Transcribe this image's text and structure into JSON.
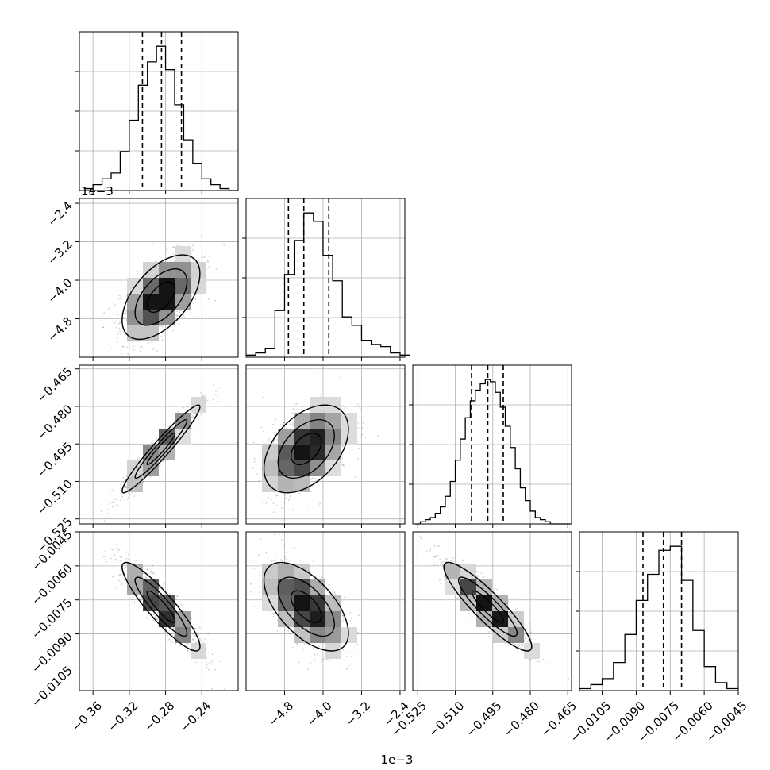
{
  "chart_data": {
    "type": "corner",
    "parameters": 4,
    "grid": true,
    "quantile_lines": "dashed",
    "marginal_histograms": [
      {
        "param": 0,
        "bin_edges": [
          -0.37,
          -0.36,
          -0.35,
          -0.34,
          -0.33,
          -0.32,
          -0.31,
          -0.3,
          -0.29,
          -0.28,
          -0.27,
          -0.26,
          -0.25,
          -0.24,
          -0.23,
          -0.22,
          -0.21,
          -0.2
        ],
        "counts": [
          1,
          3,
          6,
          9,
          20,
          36,
          54,
          66,
          74,
          62,
          44,
          26,
          14,
          6,
          3,
          1,
          0
        ],
        "quantiles": [
          -0.3055,
          -0.2845,
          -0.2625
        ]
      },
      {
        "param": 1,
        "bin_edges": [
          -5.6,
          -5.4,
          -5.2,
          -5.0,
          -4.8,
          -4.6,
          -4.4,
          -4.2,
          -4.0,
          -3.8,
          -3.6,
          -3.4,
          -3.2,
          -3.0,
          -2.8,
          -2.6,
          -2.4,
          -2.2
        ],
        "counts": [
          1,
          2,
          4,
          22,
          39,
          55,
          68,
          64,
          48,
          36,
          19,
          15,
          8,
          6,
          5,
          2,
          1
        ],
        "quantiles": [
          -4.72,
          -4.4,
          -3.88
        ]
      },
      {
        "param": 2,
        "bin_edges": [
          -0.526,
          -0.524,
          -0.522,
          -0.52,
          -0.518,
          -0.516,
          -0.514,
          -0.512,
          -0.51,
          -0.508,
          -0.506,
          -0.504,
          -0.502,
          -0.5,
          -0.498,
          -0.496,
          -0.494,
          -0.492,
          -0.49,
          -0.488,
          -0.486,
          -0.484,
          -0.482,
          -0.48,
          -0.478,
          -0.476,
          -0.474,
          -0.472,
          -0.47,
          -0.468,
          -0.466,
          -0.464
        ],
        "counts": [
          0,
          1,
          2,
          3,
          5,
          8,
          13,
          20,
          30,
          40,
          50,
          58,
          63,
          66,
          68,
          67,
          62,
          55,
          46,
          36,
          26,
          17,
          11,
          6,
          3,
          2,
          1,
          0,
          0,
          0,
          0
        ],
        "quantiles": [
          -0.5035,
          -0.497,
          -0.4908
        ]
      },
      {
        "param": 3,
        "bin_edges": [
          -0.0115,
          -0.011,
          -0.0105,
          -0.01,
          -0.0095,
          -0.009,
          -0.0085,
          -0.008,
          -0.0075,
          -0.007,
          -0.0065,
          -0.006,
          -0.0055,
          -0.005,
          -0.0045
        ],
        "counts": [
          1,
          3,
          6,
          14,
          28,
          45,
          58,
          70,
          72,
          55,
          30,
          12,
          4,
          1
        ],
        "quantiles": [
          -0.0087,
          -0.0078,
          -0.007
        ]
      }
    ],
    "pairs": [
      {
        "row": 1,
        "col": 0,
        "center": [
          -0.285,
          -4.35
        ],
        "sd": [
          0.022,
          0.45
        ],
        "corr": 0.55
      },
      {
        "row": 2,
        "col": 0,
        "center": [
          -0.285,
          -0.497
        ],
        "sd": [
          0.022,
          0.009
        ],
        "corr": 0.96
      },
      {
        "row": 2,
        "col": 1,
        "center": [
          -4.35,
          -0.497
        ],
        "sd": [
          0.45,
          0.009
        ],
        "corr": 0.45
      },
      {
        "row": 3,
        "col": 0,
        "center": [
          -0.285,
          -0.0078
        ],
        "sd": [
          0.022,
          0.001
        ],
        "corr": -0.9
      },
      {
        "row": 3,
        "col": 1,
        "center": [
          -4.35,
          -0.0078
        ],
        "sd": [
          0.45,
          0.001
        ],
        "corr": -0.6
      },
      {
        "row": 3,
        "col": 2,
        "center": [
          -0.497,
          -0.0078
        ],
        "sd": [
          0.009,
          0.001
        ],
        "corr": -0.9
      }
    ],
    "axes": [
      {
        "param": 0,
        "range": [
          -0.375,
          -0.2
        ],
        "ticks": [
          -0.36,
          -0.32,
          -0.28,
          -0.24
        ],
        "tick_labels": [
          "−0.36",
          "−0.32",
          "−0.28",
          "−0.24"
        ]
      },
      {
        "param": 1,
        "range": [
          -5.6,
          -2.3
        ],
        "ticks": [
          -4.8,
          -4.0,
          -3.2,
          -2.4
        ],
        "tick_labels": [
          "−4.8",
          "−4.0",
          "−3.2",
          "−2.4"
        ],
        "offset_text": "1e−3"
      },
      {
        "param": 2,
        "range": [
          -0.527,
          -0.4635
        ],
        "ticks": [
          -0.525,
          -0.51,
          -0.495,
          -0.48,
          -0.465
        ],
        "tick_labels": [
          "−0.525",
          "−0.510",
          "−0.495",
          "−0.480",
          "−0.465"
        ]
      },
      {
        "param": 3,
        "range": [
          -0.0115,
          -0.0045
        ],
        "ticks": [
          -0.0105,
          -0.009,
          -0.0075,
          -0.006,
          -0.0045
        ],
        "tick_labels": [
          "−0.0105",
          "−0.0090",
          "−0.0075",
          "−0.0060",
          "−0.0045"
        ]
      }
    ]
  }
}
